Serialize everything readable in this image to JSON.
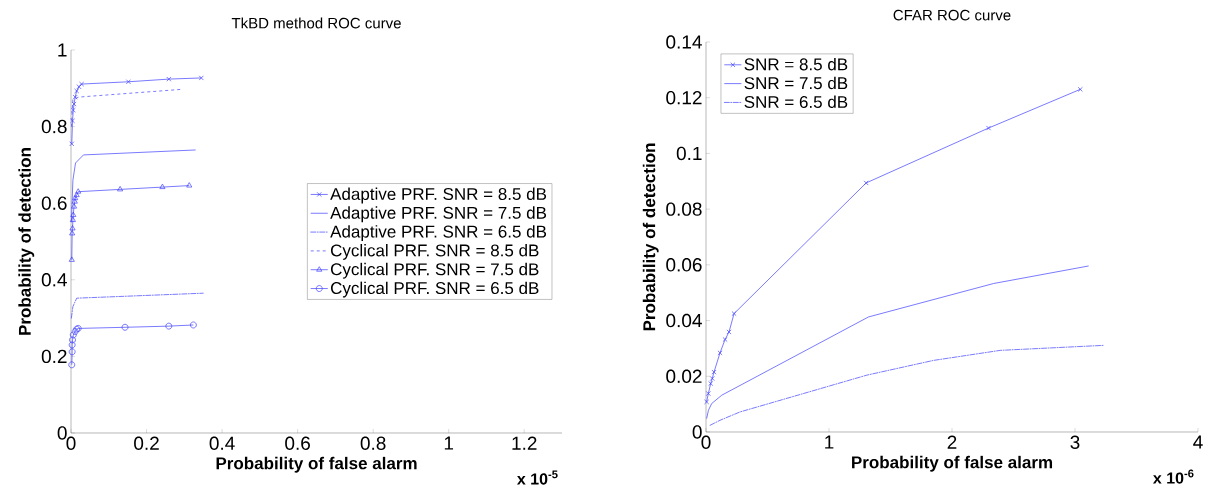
{
  "chart_data": [
    {
      "type": "line",
      "title": "TkBD method ROC curve",
      "xlabel": "Probability of false alarm",
      "ylabel": "Probability of detection",
      "xlim": [
        0,
        1.3
      ],
      "ylim": [
        0,
        1
      ],
      "xticks": [
        0,
        0.2,
        0.4,
        0.6,
        0.8,
        1,
        1.2
      ],
      "yticks": [
        0,
        0.2,
        0.4,
        0.6,
        0.8,
        1
      ],
      "legend": "right",
      "grid": false,
      "annotations": [
        "x 10$^{-5}$"
      ],
      "series": [
        {
          "name": "Adaptive PRF. SNR = 8.5 dB",
          "color": "#4040ff",
          "marker": "cross",
          "line_style": "solid",
          "x": [
            0.002,
            0.004,
            0.006,
            0.008,
            0.011,
            0.015,
            0.021,
            0.028,
            0.152,
            0.259,
            0.345
          ],
          "values": [
            0.755,
            0.815,
            0.843,
            0.859,
            0.877,
            0.893,
            0.904,
            0.911,
            0.917,
            0.924,
            0.927
          ]
        },
        {
          "name": "Adaptive PRF. SNR = 7.5 dB",
          "color": "#4040ff",
          "marker": "none",
          "line_style": "solid",
          "x": [
            0.001,
            0.005,
            0.012,
            0.033,
            0.33
          ],
          "values": [
            0.55,
            0.66,
            0.705,
            0.726,
            0.739
          ]
        },
        {
          "name": "Adaptive PRF. SNR = 6.5 dB",
          "color": "#4040ff",
          "marker": "none",
          "line_style": "dashdot",
          "x": [
            0.001,
            0.005,
            0.015,
            0.35
          ],
          "values": [
            0.3,
            0.33,
            0.352,
            0.365
          ]
        },
        {
          "name": "Cyclical PRF. SNR = 8.5 dB",
          "color": "#4040ff",
          "marker": "none",
          "line_style": "dashed",
          "x": [
            0.001,
            0.005,
            0.02,
            0.29
          ],
          "values": [
            0.8,
            0.87,
            0.877,
            0.897
          ]
        },
        {
          "name": "Cyclical PRF. SNR = 7.5 dB",
          "color": "#4040ff",
          "marker": "triangle",
          "line_style": "solid",
          "x": [
            0.002,
            0.003,
            0.004,
            0.005,
            0.006,
            0.008,
            0.01,
            0.011,
            0.015,
            0.019,
            0.13,
            0.242,
            0.313
          ],
          "values": [
            0.452,
            0.521,
            0.534,
            0.556,
            0.569,
            0.591,
            0.604,
            0.613,
            0.621,
            0.63,
            0.636,
            0.642,
            0.646
          ]
        },
        {
          "name": "Cyclical PRF. SNR = 6.5 dB",
          "color": "#4040ff",
          "marker": "circle",
          "line_style": "solid",
          "x": [
            0.002,
            0.003,
            0.003,
            0.004,
            0.006,
            0.011,
            0.015,
            0.019,
            0.143,
            0.259,
            0.324
          ],
          "values": [
            0.178,
            0.212,
            0.23,
            0.243,
            0.256,
            0.265,
            0.271,
            0.273,
            0.276,
            0.279,
            0.282
          ]
        }
      ]
    },
    {
      "type": "line",
      "title": "CFAR ROC curve",
      "xlabel": "Probability of false alarm",
      "ylabel": "Probability of detection",
      "xlim": [
        0,
        4
      ],
      "ylim": [
        0,
        0.14
      ],
      "xticks": [
        0,
        1,
        2,
        3,
        4
      ],
      "yticks": [
        0,
        0.02,
        0.04,
        0.06,
        0.08,
        0.1,
        0.12,
        0.14
      ],
      "legend": "top left",
      "grid": false,
      "annotations": [
        "x 10$^{-6}$"
      ],
      "series": [
        {
          "name": "SNR = 8.5 dB",
          "color": "#4040ff",
          "marker": "cross",
          "line_style": "solid",
          "x": [
            0.005,
            0.019,
            0.038,
            0.051,
            0.065,
            0.114,
            0.155,
            0.187,
            0.228,
            1.302,
            2.297,
            3.043
          ],
          "values": [
            0.0108,
            0.0138,
            0.0174,
            0.0192,
            0.0215,
            0.0284,
            0.0332,
            0.0359,
            0.0425,
            0.0894,
            0.1091,
            0.123
          ]
        },
        {
          "name": "SNR = 7.5 dB",
          "color": "#4040ff",
          "marker": "none",
          "line_style": "solid",
          "x": [
            0.005,
            0.02,
            0.046,
            0.128,
            1.321,
            2.338,
            3.111
          ],
          "values": [
            0.0048,
            0.0078,
            0.0102,
            0.0132,
            0.0413,
            0.0533,
            0.0596
          ]
        },
        {
          "name": "SNR = 6.5 dB",
          "color": "#4040ff",
          "marker": "none",
          "line_style": "dashdot",
          "x": [
            0.033,
            0.114,
            0.277,
            1.307,
            1.85,
            2.392,
            3.233
          ],
          "values": [
            0.0024,
            0.0042,
            0.0072,
            0.0204,
            0.0257,
            0.0293,
            0.0311
          ]
        }
      ]
    }
  ]
}
